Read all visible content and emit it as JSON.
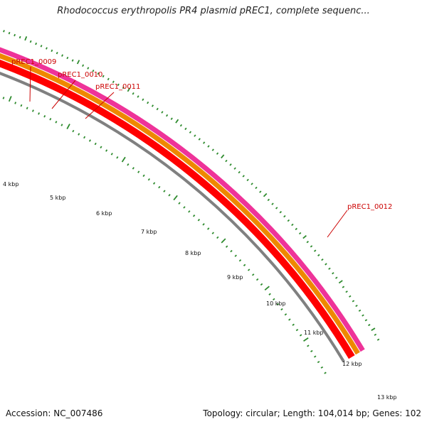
{
  "header": {
    "title": "Rhodococcus erythropolis PR4 plasmid pREC1, complete sequenc..."
  },
  "footer": {
    "accession": "Accession: NC_007486",
    "summary": "Topology: circular; Length: 104,014 bp; Genes: 102"
  },
  "genes": [
    "pREC1_0009",
    "pREC1_0010",
    "pREC1_0011",
    "pREC1_0012"
  ],
  "kbp_labels": [
    "4 kbp",
    "5 kbp",
    "6 kbp",
    "7 kbp",
    "8 kbp",
    "9 kbp",
    "10 kbp",
    "11 kbp",
    "12 kbp",
    "13 kbp"
  ],
  "colors": {
    "cds": "#ff0000",
    "cds_outline": "#cc0000",
    "track_pink": "#ee3399",
    "track_orange": "#ee8800",
    "track_red": "#ff0000",
    "backbone": "#808080",
    "tick": "#2e8b2e",
    "label": "#cc0000"
  }
}
